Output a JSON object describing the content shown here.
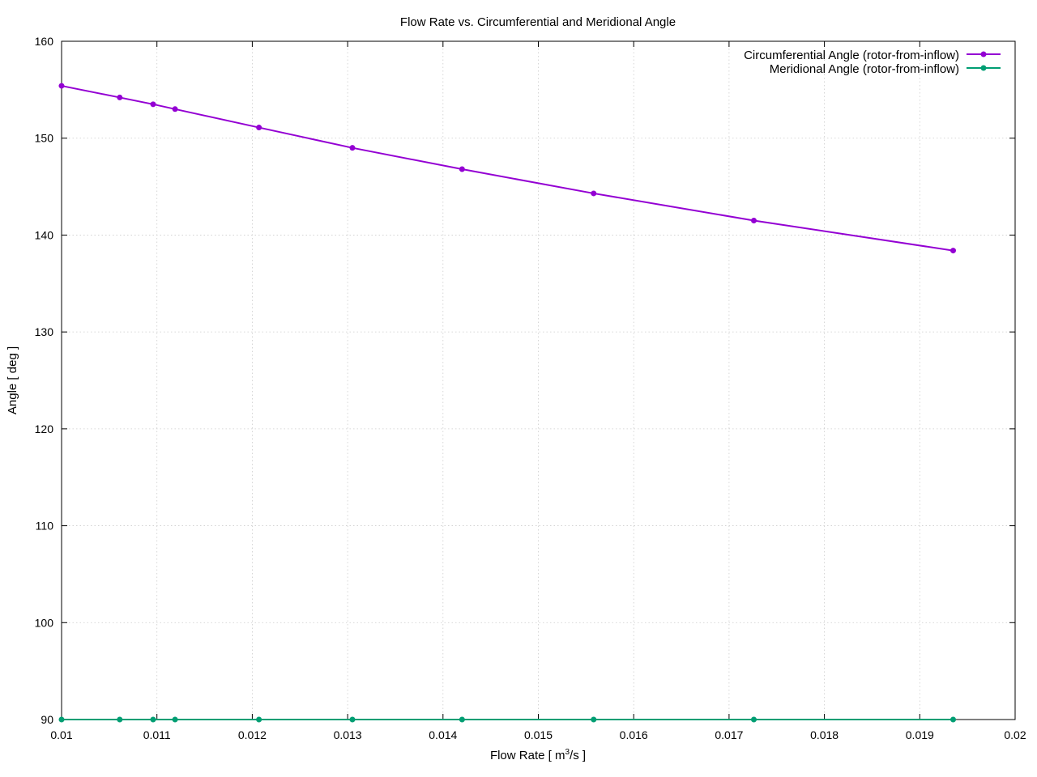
{
  "chart_data": {
    "type": "line",
    "title": "Flow Rate vs. Circumferential and Meridional Angle",
    "xlabel": "Flow Rate [ m",
    "xlabel_superscript": "3",
    "xlabel_suffix": "/s ]",
    "ylabel": "Angle [ deg ]",
    "xlim": [
      0.01,
      0.02
    ],
    "ylim": [
      90,
      160
    ],
    "xticks": [
      0.01,
      0.011,
      0.012,
      0.013,
      0.014,
      0.015,
      0.016,
      0.017,
      0.018,
      0.019,
      0.02
    ],
    "xtick_labels": [
      "0.01",
      "0.011",
      "0.012",
      "0.013",
      "0.014",
      "0.015",
      "0.016",
      "0.017",
      "0.018",
      "0.019",
      "0.02"
    ],
    "yticks": [
      90,
      100,
      110,
      120,
      130,
      140,
      150,
      160
    ],
    "ytick_labels": [
      "90",
      "100",
      "110",
      "120",
      "130",
      "140",
      "150",
      "160"
    ],
    "grid": true,
    "legend_position": "top-right",
    "x": [
      0.01,
      0.01061,
      0.01096,
      0.01119,
      0.01207,
      0.01305,
      0.0142,
      0.01558,
      0.01726,
      0.01935
    ],
    "series": [
      {
        "name": "Circumferential Angle (rotor-from-inflow)",
        "color": "#9400d3",
        "values": [
          155.4,
          154.2,
          153.5,
          153.0,
          151.1,
          149.0,
          146.8,
          144.3,
          141.5,
          138.4
        ]
      },
      {
        "name": "Meridional Angle (rotor-from-inflow)",
        "color": "#009e73",
        "values": [
          90,
          90,
          90,
          90,
          90,
          90,
          90,
          90,
          90,
          90
        ]
      }
    ]
  }
}
